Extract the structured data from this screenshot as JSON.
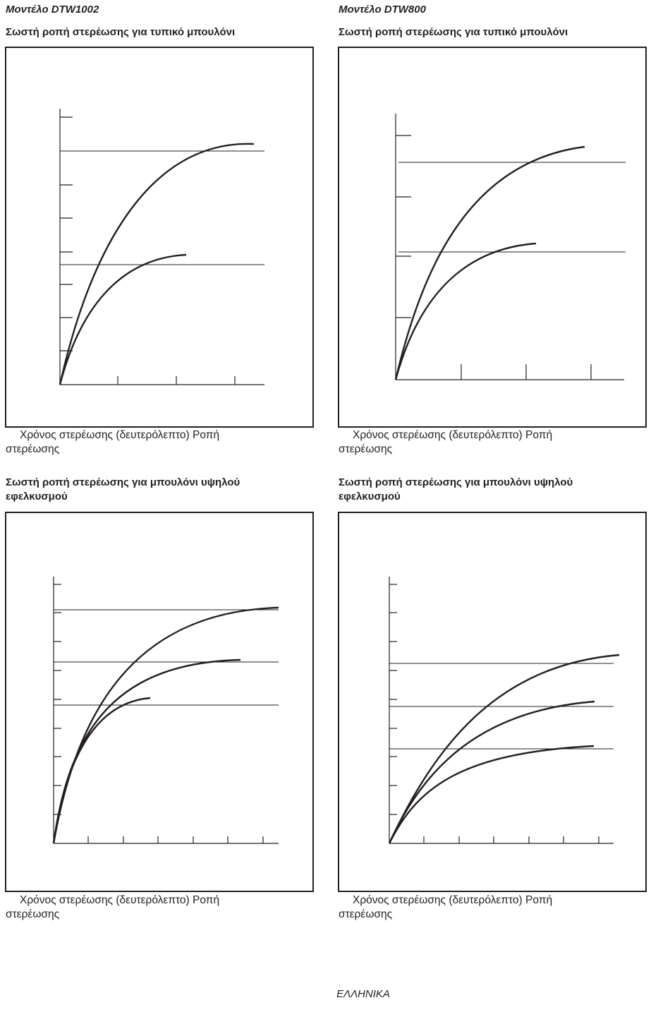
{
  "panels": [
    {
      "model": "Μοντέλο DTW1002",
      "title": "Σωστή ροπή στερέωσης για τυπικό μπουλόνι",
      "caption_line1": "Χρόνος στερέωσης (δευτερόλεπτο)      Ροπή",
      "caption_line2": "στερέωσης"
    },
    {
      "model": "Μοντέλο DTW800",
      "title": "Σωστή ροπή στερέωσης για τυπικό μπουλόνι",
      "caption_line1": "Χρόνος στερέωσης (δευτερόλεπτο)      Ροπή",
      "caption_line2": "στερέωσης"
    },
    {
      "title": "Σωστή ροπή στερέωσης για μπουλόνι υψηλού εφελκυσμού",
      "caption_line1": "Χρόνος στερέωσης (δευτερόλεπτο)      Ροπή",
      "caption_line2": "στερέωσης"
    },
    {
      "title": "Σωστή ροπή στερέωσης για μπουλόνι υψηλού εφελκυσμού",
      "caption_line1": "Χρόνος στερέωσης (δευτερόλεπτο)      Ροπή",
      "caption_line2": "στερέωσης"
    }
  ],
  "footer": "ΕΛΛΗΝΙΚΑ",
  "chart_data": [
    {
      "type": "line",
      "series_count": 2,
      "x_ticks": 4,
      "y_ticks": 8,
      "target_lines": 2
    },
    {
      "type": "line",
      "series_count": 2,
      "x_ticks": 3,
      "y_ticks": 4,
      "target_lines": 2
    },
    {
      "type": "line",
      "series_count": 3,
      "x_ticks": 7,
      "y_ticks": 9,
      "target_lines": 3
    },
    {
      "type": "line",
      "series_count": 3,
      "x_ticks": 7,
      "y_ticks": 9,
      "target_lines": 3
    }
  ]
}
